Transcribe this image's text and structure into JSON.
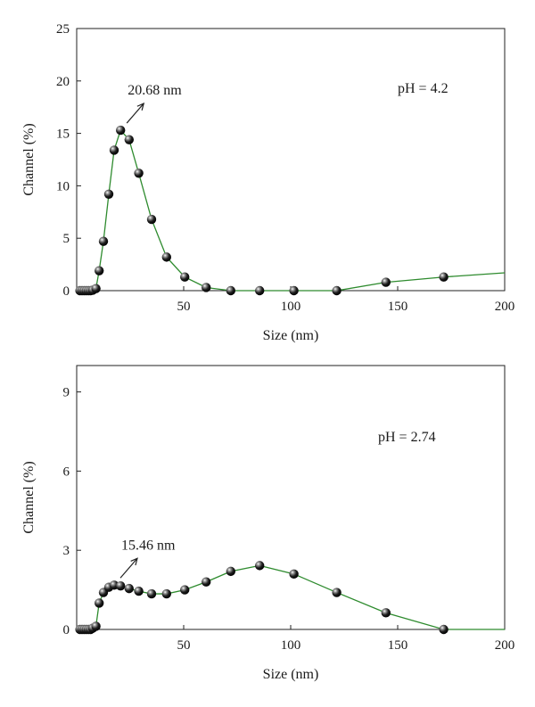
{
  "chart_data": [
    {
      "type": "line",
      "xlabel": "Size (nm)",
      "ylabel": "Channel (%)",
      "xlim": [
        0,
        200
      ],
      "ylim": [
        0,
        25
      ],
      "xticks": [
        50,
        100,
        150,
        200
      ],
      "yticks": [
        0,
        5,
        10,
        15,
        20,
        25
      ],
      "grid": false,
      "annotations": {
        "peak": "20.68 nm",
        "condition": "pH = 4.2"
      },
      "series": [
        {
          "marker": "sphere",
          "line_color": "#2e8b2e",
          "x": [
            1.5,
            2.5,
            3.5,
            4.5,
            5.5,
            6.5,
            7.5,
            9,
            10.5,
            12.5,
            15,
            17.5,
            20.5,
            24.5,
            29,
            35,
            42,
            50.5,
            60.5,
            72,
            85.5,
            101.5,
            121.5,
            144.5,
            171.5,
            200
          ],
          "y": [
            0,
            0,
            0,
            0,
            0,
            0,
            0.05,
            0.2,
            1.9,
            4.7,
            9.2,
            13.4,
            15.3,
            14.4,
            11.2,
            6.8,
            3.2,
            1.3,
            0.3,
            0,
            0,
            0,
            0,
            0.8,
            1.3,
            1.7
          ],
          "markers_shown": 25
        }
      ]
    },
    {
      "type": "line",
      "xlabel": "Size (nm)",
      "ylabel": "Channel (%)",
      "xlim": [
        0,
        200
      ],
      "ylim": [
        0,
        10
      ],
      "xticks": [
        50,
        100,
        150,
        200
      ],
      "yticks": [
        0,
        3,
        6,
        9
      ],
      "grid": false,
      "annotations": {
        "peak": "15.46 nm",
        "condition": "pH = 2.74"
      },
      "series": [
        {
          "marker": "sphere",
          "line_color": "#2e8b2e",
          "x": [
            1.5,
            2.5,
            3.5,
            4.5,
            5.5,
            6.5,
            7.5,
            9,
            10.5,
            12.5,
            15,
            17.5,
            20.5,
            24.5,
            29,
            35,
            42,
            50.5,
            60.5,
            72,
            85.5,
            101.5,
            121.5,
            144.5,
            171.5,
            200
          ],
          "y": [
            0,
            0,
            0,
            0,
            0,
            0,
            0.05,
            0.12,
            1.0,
            1.4,
            1.6,
            1.68,
            1.65,
            1.55,
            1.45,
            1.35,
            1.35,
            1.5,
            1.8,
            2.2,
            2.42,
            2.1,
            1.4,
            0.63,
            0,
            0
          ],
          "markers_shown": 25
        }
      ]
    }
  ]
}
